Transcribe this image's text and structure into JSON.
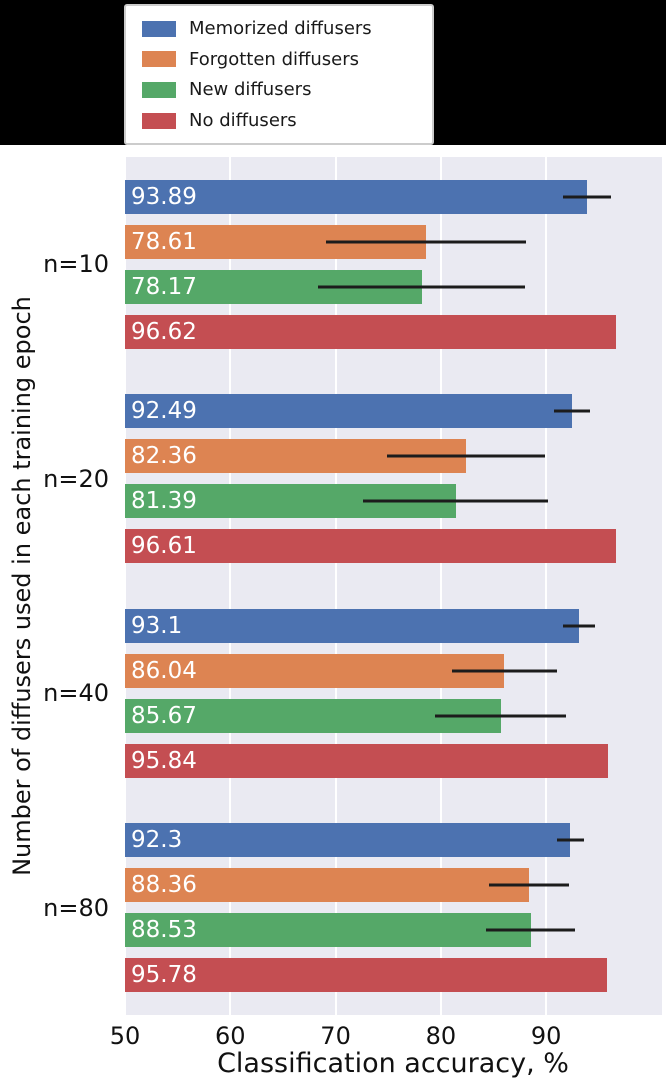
{
  "page": {
    "background": "#000000",
    "figure_background": "#ffffff",
    "plot_background": "#eaeaf2"
  },
  "legend": {
    "items": [
      {
        "label": "Memorized diffusers",
        "color": "#4c72b0"
      },
      {
        "label": "Forgotten diffusers",
        "color": "#dd8452"
      },
      {
        "label": "New diffusers",
        "color": "#55a868"
      },
      {
        "label": "No diffusers",
        "color": "#c44e52"
      }
    ]
  },
  "chart_data": {
    "type": "bar",
    "orientation": "horizontal",
    "title": "",
    "xlabel": "Classification accuracy, %",
    "ylabel": "Number of diffusers used in each training epoch",
    "categories": [
      "n=10",
      "n=20",
      "n=40",
      "n=80"
    ],
    "series": [
      {
        "name": "Memorized diffusers",
        "color": "#4c72b0",
        "values": [
          93.89,
          92.49,
          93.1,
          92.3
        ],
        "errors": [
          2.3,
          1.7,
          1.5,
          1.3
        ]
      },
      {
        "name": "Forgotten diffusers",
        "color": "#dd8452",
        "values": [
          78.61,
          82.36,
          86.04,
          88.36
        ],
        "errors": [
          9.5,
          7.5,
          5.0,
          3.8
        ]
      },
      {
        "name": "New diffusers",
        "color": "#55a868",
        "values": [
          78.17,
          81.39,
          85.67,
          88.53
        ],
        "errors": [
          9.8,
          8.8,
          6.2,
          4.2
        ]
      },
      {
        "name": "No diffusers",
        "color": "#c44e52",
        "values": [
          96.62,
          96.61,
          95.84,
          95.78
        ],
        "errors": [
          0,
          0,
          0,
          0
        ]
      }
    ],
    "xlim": [
      50,
      101
    ],
    "xticks": [
      50,
      60,
      70,
      80,
      90
    ],
    "grid": true,
    "legend_position": "top-left",
    "bar_label_color": "#ffffff",
    "error_bar_color": "#1c1c1c"
  }
}
